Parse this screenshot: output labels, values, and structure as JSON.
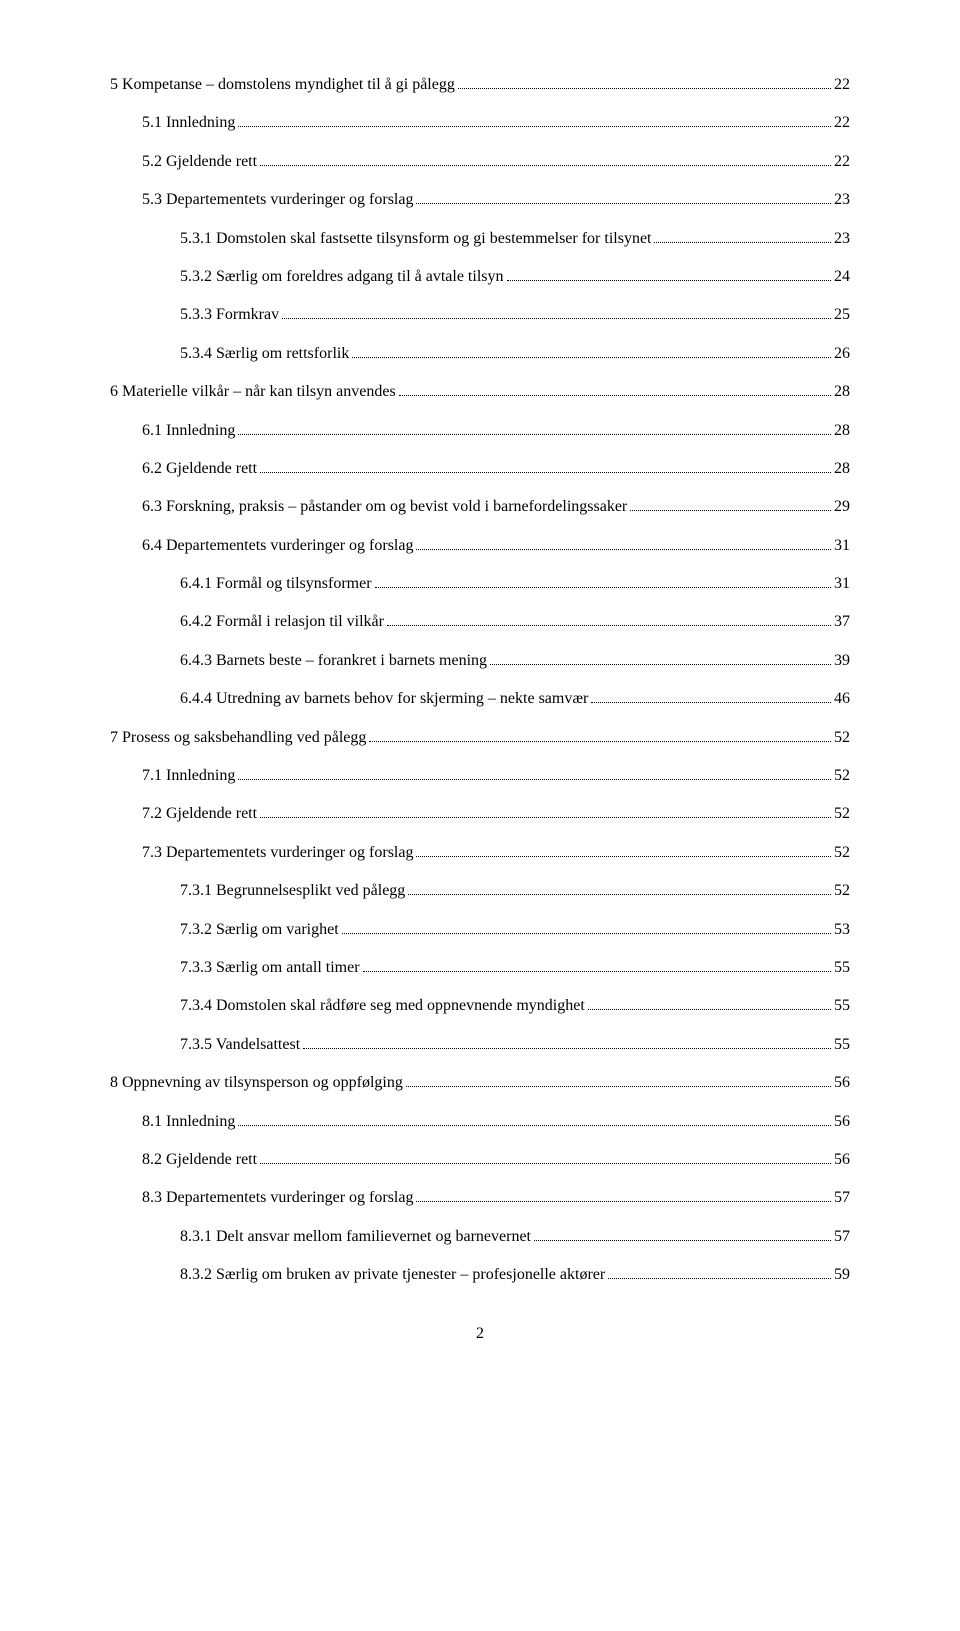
{
  "toc": [
    {
      "level": 1,
      "label": "5   Kompetanse – domstolens myndighet til å gi pålegg",
      "page": "22"
    },
    {
      "level": 2,
      "label": "5.1   Innledning",
      "page": "22"
    },
    {
      "level": 2,
      "label": "5.2   Gjeldende rett",
      "page": "22"
    },
    {
      "level": 2,
      "label": "5.3   Departementets vurderinger og forslag",
      "page": "23"
    },
    {
      "level": 3,
      "label": "5.3.1   Domstolen skal fastsette tilsynsform og gi bestemmelser for tilsynet",
      "page": "23"
    },
    {
      "level": 3,
      "label": "5.3.2   Særlig om foreldres adgang til å avtale tilsyn",
      "page": "24"
    },
    {
      "level": 3,
      "label": "5.3.3   Formkrav",
      "page": "25"
    },
    {
      "level": 3,
      "label": "5.3.4   Særlig om rettsforlik",
      "page": "26"
    },
    {
      "level": 1,
      "label": "6   Materielle vilkår – når kan tilsyn anvendes",
      "page": "28"
    },
    {
      "level": 2,
      "label": "6.1   Innledning",
      "page": "28"
    },
    {
      "level": 2,
      "label": "6.2   Gjeldende rett",
      "page": "28"
    },
    {
      "level": 2,
      "label": "6.3   Forskning, praksis – påstander om og bevist vold i barnefordelingssaker",
      "page": "29"
    },
    {
      "level": 2,
      "label": "6.4   Departementets vurderinger og forslag",
      "page": "31"
    },
    {
      "level": 3,
      "label": "6.4.1   Formål og tilsynsformer",
      "page": "31"
    },
    {
      "level": 3,
      "label": "6.4.2   Formål i relasjon til vilkår",
      "page": "37"
    },
    {
      "level": 3,
      "label": "6.4.3   Barnets beste – forankret i barnets mening",
      "page": "39"
    },
    {
      "level": 3,
      "label": "6.4.4   Utredning av barnets behov for skjerming – nekte samvær",
      "page": "46"
    },
    {
      "level": 1,
      "label": "7   Prosess og saksbehandling ved pålegg",
      "page": "52"
    },
    {
      "level": 2,
      "label": "7.1   Innledning",
      "page": "52"
    },
    {
      "level": 2,
      "label": "7.2   Gjeldende rett",
      "page": "52"
    },
    {
      "level": 2,
      "label": "7.3   Departementets vurderinger og forslag",
      "page": "52"
    },
    {
      "level": 3,
      "label": "7.3.1   Begrunnelsesplikt ved pålegg",
      "page": "52"
    },
    {
      "level": 3,
      "label": "7.3.2   Særlig om varighet",
      "page": "53"
    },
    {
      "level": 3,
      "label": "7.3.3   Særlig om antall timer",
      "page": "55"
    },
    {
      "level": 3,
      "label": "7.3.4   Domstolen skal rådføre seg med oppnevnende myndighet",
      "page": "55"
    },
    {
      "level": 3,
      "label": "7.3.5   Vandelsattest",
      "page": "55"
    },
    {
      "level": 1,
      "label": "8   Oppnevning av tilsynsperson og oppfølging",
      "page": "56"
    },
    {
      "level": 2,
      "label": "8.1   Innledning",
      "page": "56"
    },
    {
      "level": 2,
      "label": "8.2   Gjeldende rett",
      "page": "56"
    },
    {
      "level": 2,
      "label": "8.3   Departementets vurderinger og forslag",
      "page": "57"
    },
    {
      "level": 3,
      "label": "8.3.1   Delt ansvar mellom familievernet og barnevernet",
      "page": "57"
    },
    {
      "level": 3,
      "label": "8.3.2   Særlig om bruken av private tjenester – profesjonelle aktører",
      "page": "59"
    }
  ],
  "pageNumber": "2"
}
